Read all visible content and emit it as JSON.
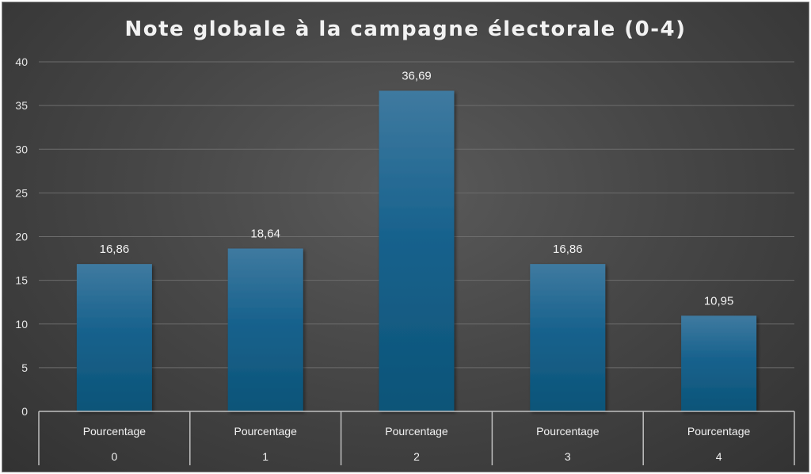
{
  "chart_data": {
    "type": "bar",
    "title": "Note globale à la campagne électorale (0-4)",
    "series_label": "Pourcentage",
    "categories": [
      "0",
      "1",
      "2",
      "3",
      "4"
    ],
    "values": [
      16.86,
      18.64,
      36.69,
      16.86,
      10.95
    ],
    "data_labels": [
      "16,86",
      "18,64",
      "36,69",
      "16,86",
      "10,95"
    ],
    "ylim": [
      0,
      40
    ],
    "yticks": [
      0,
      5,
      10,
      15,
      20,
      25,
      30,
      35,
      40
    ],
    "grid": true,
    "legend": "none",
    "bar_color": "#1b5f85",
    "background_color": "#454545"
  }
}
